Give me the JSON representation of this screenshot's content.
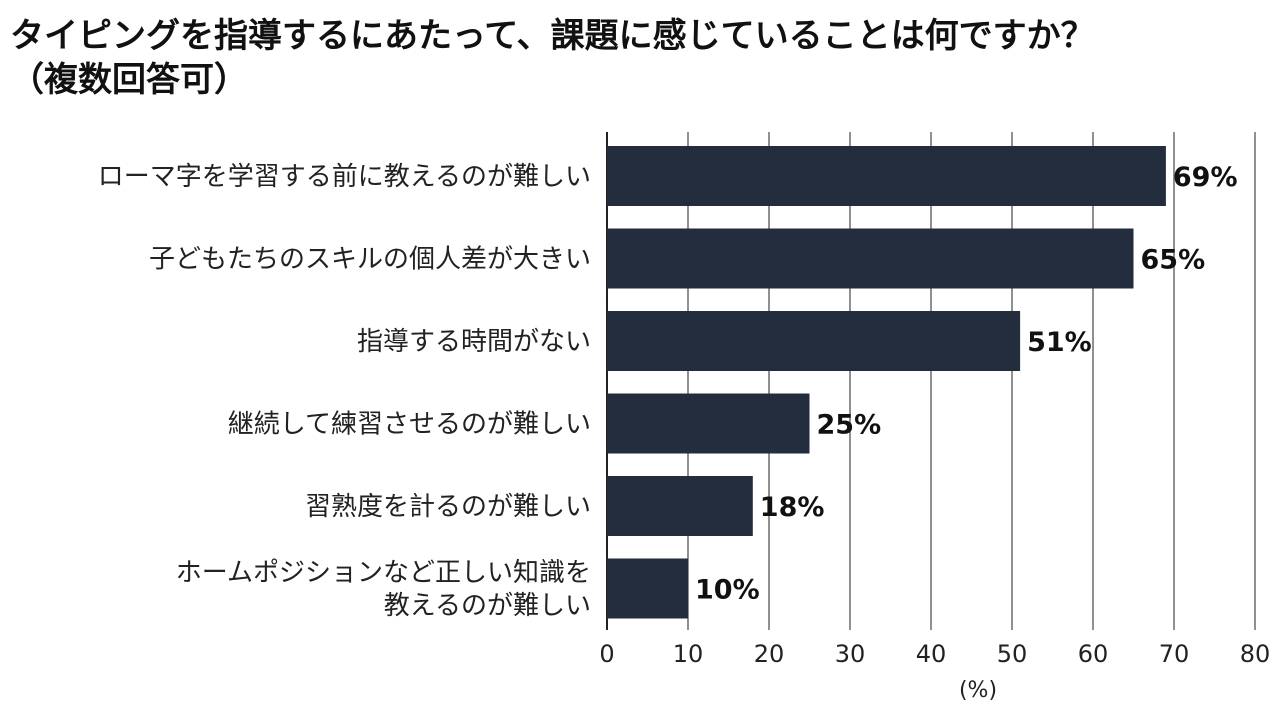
{
  "chart_data": {
    "type": "bar",
    "orientation": "horizontal",
    "title_lines": [
      "タイピングを指導するにあたって、課題に感じていることは何ですか？",
      "（複数回答可）"
    ],
    "categories": [
      [
        "ローマ字を学習する前に教えるのが難しい"
      ],
      [
        "子どもたちのスキルの個人差が大きい"
      ],
      [
        "指導する時間がない"
      ],
      [
        "継続して練習させるのが難しい"
      ],
      [
        "習熟度を計るのが難しい"
      ],
      [
        "ホームポジションなど正しい知識を",
        "教えるのが難しい"
      ]
    ],
    "values": [
      69,
      65,
      51,
      25,
      18,
      10
    ],
    "value_labels": [
      "69%",
      "65%",
      "51%",
      "25%",
      "18%",
      "10%"
    ],
    "xticks": [
      "0",
      "10",
      "20",
      "30",
      "40",
      "50",
      "60",
      "70",
      "80"
    ],
    "xlim": [
      0,
      80
    ],
    "xlabel": "(%)",
    "grid": true,
    "bar_color": "#232d3d",
    "grid_color": "#555555"
  }
}
